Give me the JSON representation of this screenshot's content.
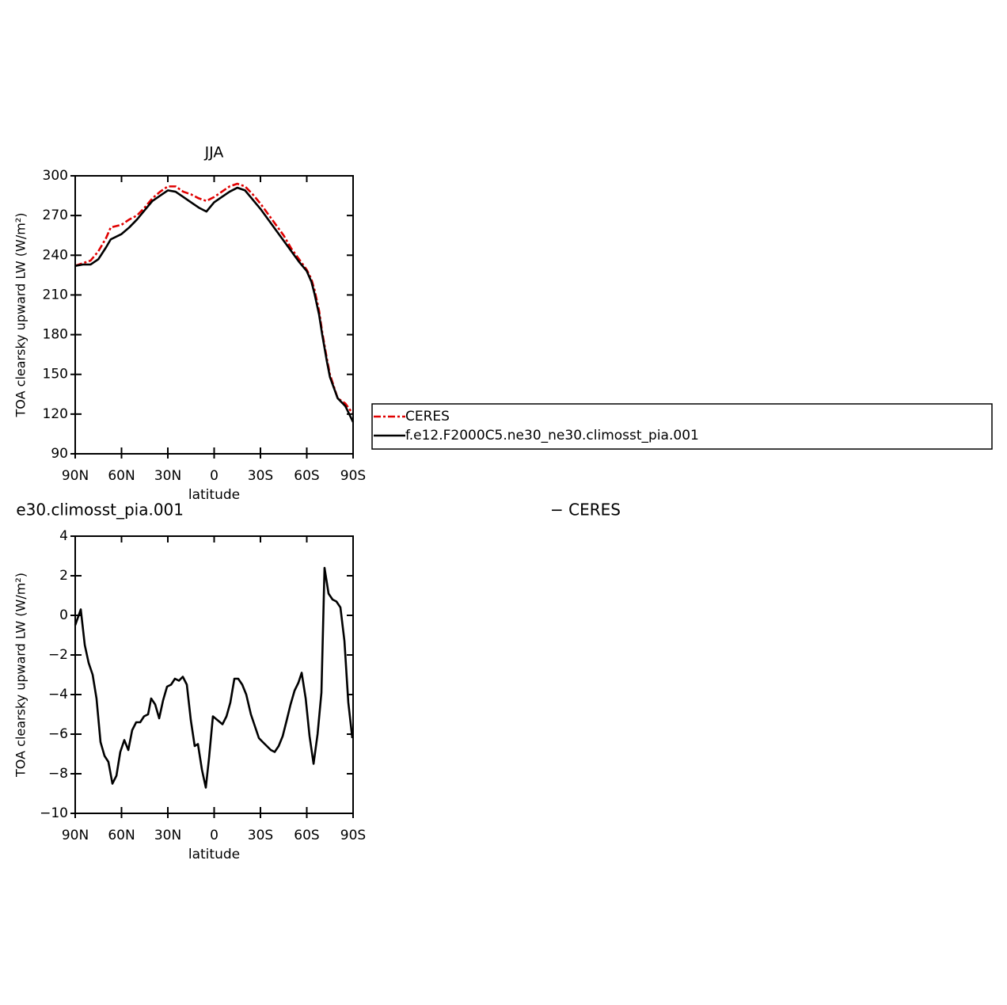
{
  "chart_data": [
    {
      "type": "line",
      "title": "JJA",
      "xlabel": "latitude",
      "ylabel": "TOA clearsky upward LW (W/m²)",
      "x": [
        90,
        85,
        80,
        75,
        70,
        67,
        60,
        55,
        50,
        45,
        40,
        35,
        30,
        25,
        20,
        15,
        10,
        5,
        0,
        -5,
        -10,
        -15,
        -20,
        -25,
        -30,
        -35,
        -40,
        -45,
        -50,
        -55,
        -60,
        -63,
        -65,
        -68,
        -70,
        -73,
        -75,
        -80,
        -85,
        -90
      ],
      "xlim": [
        90,
        -90
      ],
      "xticks": [
        {
          "value": 90,
          "label": "90N"
        },
        {
          "value": 60,
          "label": "60N"
        },
        {
          "value": 30,
          "label": "30N"
        },
        0,
        {
          "value": -30,
          "label": "30S"
        },
        {
          "value": -60,
          "label": "60S"
        },
        {
          "value": -90,
          "label": "90S"
        }
      ],
      "ylim": [
        90,
        300
      ],
      "yticks": [
        90,
        120,
        150,
        180,
        210,
        240,
        270,
        300
      ],
      "legend": "right",
      "series": [
        {
          "name": "CERES",
          "color": "#e00000",
          "dashed": true,
          "values": [
            232,
            234,
            236,
            243,
            253,
            261,
            263,
            267,
            270,
            276,
            283,
            288,
            292,
            292,
            288,
            286,
            283,
            281,
            284,
            288,
            292,
            294,
            292,
            286,
            279,
            271,
            263,
            255,
            245,
            237,
            229,
            222,
            214,
            198,
            182,
            162,
            150,
            132,
            128,
            120
          ]
        },
        {
          "name": "f.e12.F2000C5.ne30_ne30.climosst_pia.001",
          "color": "#000000",
          "dashed": false,
          "values": [
            232,
            233,
            233,
            237,
            246,
            252,
            256,
            261,
            267,
            274,
            281,
            285,
            289,
            288,
            284,
            280,
            276,
            273,
            280,
            284,
            288,
            291,
            289,
            282,
            275,
            267,
            259,
            251,
            243,
            235,
            228,
            220,
            211,
            195,
            180,
            160,
            148,
            132,
            126,
            114
          ]
        }
      ]
    },
    {
      "type": "line",
      "left_title": "e30.climosst_pia.001",
      "right_title": "− CERES",
      "xlabel": "latitude",
      "ylabel": "TOA clearsky upward LW (W/m²)",
      "x": [
        90,
        86.4,
        83.8,
        81.3,
        78.7,
        76.2,
        73.6,
        71.0,
        68.5,
        65.9,
        63.3,
        60.8,
        58.2,
        55.6,
        53.1,
        50.5,
        47.9,
        45.4,
        42.8,
        40.8,
        38.2,
        35.6,
        33.1,
        30.5,
        27.9,
        25.4,
        22.8,
        20.3,
        17.7,
        15.1,
        12.6,
        10.5,
        7.9,
        5.4,
        3.3,
        0.8,
        -2.3,
        -5.4,
        -8.0,
        -10.5,
        -13.1,
        -15.6,
        -18.2,
        -20.8,
        -23.8,
        -26.4,
        -29.0,
        -31.5,
        -34.1,
        -36.7,
        -39.2,
        -41.8,
        -44.4,
        -47.0,
        -49.5,
        -52.1,
        -54.6,
        -56.7,
        -59.3,
        -61.8,
        -64.4,
        -67.0,
        -69.5,
        -71.5,
        -74.1,
        -76.7,
        -79.2,
        -81.8,
        -84.4,
        -86.9,
        -89.5
      ],
      "xlim": [
        90,
        -90
      ],
      "xticks": [
        {
          "value": 90,
          "label": "90N"
        },
        {
          "value": 60,
          "label": "60N"
        },
        {
          "value": 30,
          "label": "30N"
        },
        0,
        {
          "value": -30,
          "label": "30S"
        },
        {
          "value": -60,
          "label": "60S"
        },
        {
          "value": -90,
          "label": "90S"
        }
      ],
      "ylim": [
        -10,
        4
      ],
      "yticks": [
        {
          "value": -10,
          "label": "−10"
        },
        {
          "value": -8,
          "label": "−8"
        },
        {
          "value": -6,
          "label": "−6"
        },
        {
          "value": -4,
          "label": "−4"
        },
        {
          "value": -2,
          "label": "−2"
        },
        0,
        2,
        4
      ],
      "series": [
        {
          "color": "#000000",
          "dashed": false,
          "values": [
            -0.5,
            0.3,
            -1.5,
            -2.4,
            -3.0,
            -4.2,
            -6.4,
            -7.1,
            -7.4,
            -8.5,
            -8.1,
            -6.9,
            -6.3,
            -6.8,
            -5.8,
            -5.4,
            -5.4,
            -5.1,
            -5.0,
            -4.2,
            -4.5,
            -5.2,
            -4.3,
            -3.6,
            -3.5,
            -3.2,
            -3.3,
            -3.1,
            -3.5,
            -5.3,
            -6.6,
            -6.5,
            -7.8,
            -8.7,
            -7.2,
            -5.1,
            -5.3,
            -5.5,
            -5.1,
            -4.4,
            -3.2,
            -3.2,
            -3.5,
            -4.0,
            -5.0,
            -5.6,
            -6.2,
            -6.4,
            -6.6,
            -6.8,
            -6.9,
            -6.6,
            -6.1,
            -5.3,
            -4.5,
            -3.8,
            -3.4,
            -2.9,
            -4.2,
            -6.1,
            -7.5,
            -6.0,
            -3.9,
            2.4,
            1.1,
            0.8,
            0.7,
            0.4,
            -1.3,
            -4.4,
            -6.2
          ]
        }
      ]
    }
  ]
}
